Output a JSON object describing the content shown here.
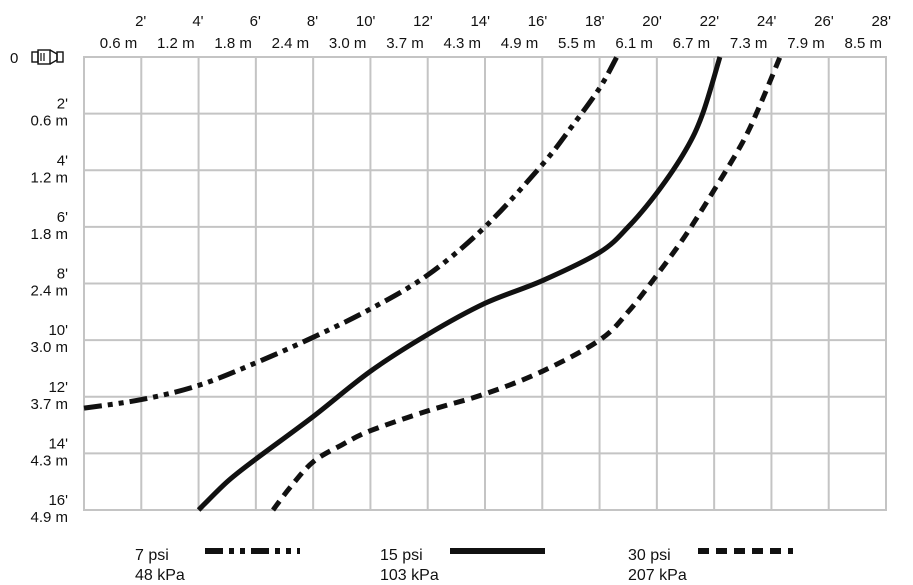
{
  "chart_data": {
    "type": "line",
    "x_axis": {
      "position": "top",
      "range_ft": [
        0,
        28
      ],
      "ticks": [
        {
          "ft": 2,
          "label_ft": "2'",
          "label_m": "0.6 m"
        },
        {
          "ft": 4,
          "label_ft": "4'",
          "label_m": "1.2 m"
        },
        {
          "ft": 6,
          "label_ft": "6'",
          "label_m": "1.8 m"
        },
        {
          "ft": 8,
          "label_ft": "8'",
          "label_m": "2.4 m"
        },
        {
          "ft": 10,
          "label_ft": "10'",
          "label_m": "3.0 m"
        },
        {
          "ft": 12,
          "label_ft": "12'",
          "label_m": "3.7 m"
        },
        {
          "ft": 14,
          "label_ft": "14'",
          "label_m": "4.3 m"
        },
        {
          "ft": 16,
          "label_ft": "16'",
          "label_m": "4.9 m"
        },
        {
          "ft": 18,
          "label_ft": "18'",
          "label_m": "5.5 m"
        },
        {
          "ft": 20,
          "label_ft": "20'",
          "label_m": "6.1 m"
        },
        {
          "ft": 22,
          "label_ft": "22'",
          "label_m": "6.7 m"
        },
        {
          "ft": 24,
          "label_ft": "24'",
          "label_m": "7.3 m"
        },
        {
          "ft": 26,
          "label_ft": "26'",
          "label_m": "7.9 m"
        },
        {
          "ft": 28,
          "label_ft": "28'",
          "label_m": "8.5 m"
        }
      ]
    },
    "y_axis": {
      "position": "left",
      "inverted": true,
      "range_ft": [
        0,
        16
      ],
      "origin_label": "0",
      "ticks": [
        {
          "ft": 2,
          "label_ft": "2'",
          "label_m": "0.6 m"
        },
        {
          "ft": 4,
          "label_ft": "4'",
          "label_m": "1.2 m"
        },
        {
          "ft": 6,
          "label_ft": "6'",
          "label_m": "1.8 m"
        },
        {
          "ft": 8,
          "label_ft": "8'",
          "label_m": "2.4 m"
        },
        {
          "ft": 10,
          "label_ft": "10'",
          "label_m": "3.0 m"
        },
        {
          "ft": 12,
          "label_ft": "12'",
          "label_m": "3.7 m"
        },
        {
          "ft": 14,
          "label_ft": "14'",
          "label_m": "4.3 m"
        },
        {
          "ft": 16,
          "label_ft": "16'",
          "label_m": "4.9 m"
        }
      ]
    },
    "grid": true,
    "origin_icon": "sprinkler-nozzle-icon",
    "legend_position": "bottom",
    "series": [
      {
        "name": "7 psi",
        "name_metric": "48 kPa",
        "dash": "dash-dot-dot",
        "points": [
          [
            0,
            12.4
          ],
          [
            2,
            12.1
          ],
          [
            4,
            11.6
          ],
          [
            6,
            10.8
          ],
          [
            8,
            9.9
          ],
          [
            10,
            8.9
          ],
          [
            12,
            7.7
          ],
          [
            14,
            6.0
          ],
          [
            16,
            3.8
          ],
          [
            17,
            2.5
          ],
          [
            18,
            1.1
          ],
          [
            18.6,
            0
          ]
        ]
      },
      {
        "name": "15 psi",
        "name_metric": "103 kPa",
        "dash": "solid",
        "points": [
          [
            4,
            16
          ],
          [
            5,
            15
          ],
          [
            6,
            14.2
          ],
          [
            8,
            12.7
          ],
          [
            10,
            11.1
          ],
          [
            12,
            9.8
          ],
          [
            14,
            8.7
          ],
          [
            16,
            7.9
          ],
          [
            18,
            6.9
          ],
          [
            19,
            6.0
          ],
          [
            20,
            4.8
          ],
          [
            21,
            3.3
          ],
          [
            21.6,
            2.0
          ],
          [
            22.2,
            0
          ]
        ]
      },
      {
        "name": "30 psi",
        "name_metric": "207 kPa",
        "dash": "dashed",
        "points": [
          [
            6.6,
            16
          ],
          [
            7.2,
            15.2
          ],
          [
            8,
            14.3
          ],
          [
            9,
            13.7
          ],
          [
            10,
            13.2
          ],
          [
            12,
            12.5
          ],
          [
            14,
            11.9
          ],
          [
            16,
            11.1
          ],
          [
            18,
            10.0
          ],
          [
            19,
            9.0
          ],
          [
            20,
            7.7
          ],
          [
            21,
            6.3
          ],
          [
            22,
            4.7
          ],
          [
            23,
            3.0
          ],
          [
            23.6,
            1.7
          ],
          [
            24.3,
            0
          ]
        ]
      }
    ]
  }
}
